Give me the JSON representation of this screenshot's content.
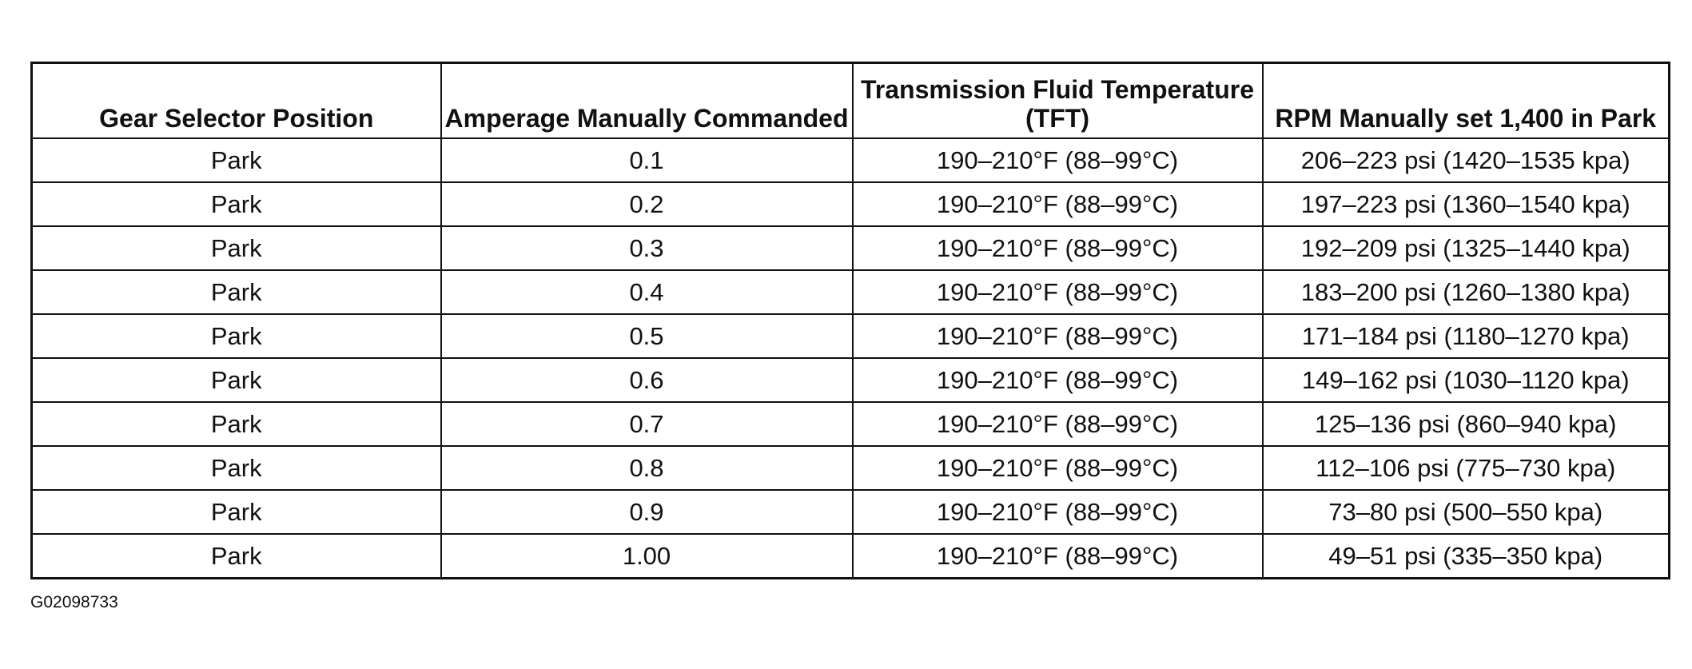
{
  "table": {
    "header": [
      "Gear Selector Position",
      "Amperage Manually Commanded",
      "Transmission Fluid Temperature (TFT)",
      "RPM Manually set 1,400 in Park"
    ],
    "rows": [
      [
        "Park",
        "0.1",
        "190–210°F (88–99°C)",
        "206–223 psi (1420–1535 kpa)"
      ],
      [
        "Park",
        "0.2",
        "190–210°F (88–99°C)",
        "197–223 psi (1360–1540 kpa)"
      ],
      [
        "Park",
        "0.3",
        "190–210°F (88–99°C)",
        "192–209 psi (1325–1440 kpa)"
      ],
      [
        "Park",
        "0.4",
        "190–210°F (88–99°C)",
        "183–200 psi (1260–1380 kpa)"
      ],
      [
        "Park",
        "0.5",
        "190–210°F (88–99°C)",
        "171–184 psi (1180–1270 kpa)"
      ],
      [
        "Park",
        "0.6",
        "190–210°F (88–99°C)",
        "149–162 psi (1030–1120 kpa)"
      ],
      [
        "Park",
        "0.7",
        "190–210°F (88–99°C)",
        "125–136 psi (860–940 kpa)"
      ],
      [
        "Park",
        "0.8",
        "190–210°F (88–99°C)",
        "112–106 psi (775–730 kpa)"
      ],
      [
        "Park",
        "0.9",
        "190–210°F (88–99°C)",
        "73–80 psi (500–550 kpa)"
      ],
      [
        "Park",
        "1.00",
        "190–210°F (88–99°C)",
        "49–51 psi (335–350 kpa)"
      ]
    ]
  },
  "figure_id": "G02098733"
}
